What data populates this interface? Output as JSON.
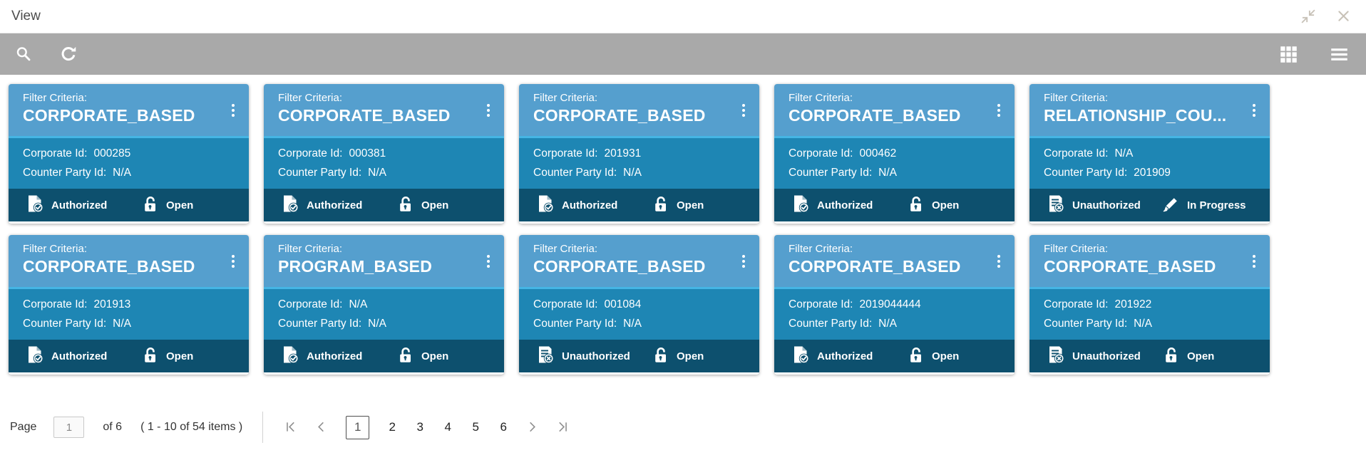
{
  "window": {
    "title": "View"
  },
  "titlebar": {
    "icons": [
      "exit-fullscreen-icon",
      "close-icon"
    ]
  },
  "toolbar": {
    "left_icons": [
      "search-icon",
      "refresh-icon"
    ],
    "right_icons": [
      "grid-view-icon",
      "list-view-icon"
    ]
  },
  "labels": {
    "filter_criteria": "Filter Criteria:",
    "corporate_id": "Corporate Id:",
    "counter_party_id": "Counter Party Id:"
  },
  "cards": [
    {
      "title": "CORPORATE_BASED",
      "corporate_id": "000285",
      "counter_party_id": "N/A",
      "auth_status": "Authorized",
      "auth_icon": "doc-check-icon",
      "record_status": "Open",
      "record_icon": "lock-open-icon"
    },
    {
      "title": "CORPORATE_BASED",
      "corporate_id": "000381",
      "counter_party_id": "N/A",
      "auth_status": "Authorized",
      "auth_icon": "doc-check-icon",
      "record_status": "Open",
      "record_icon": "lock-open-icon"
    },
    {
      "title": "CORPORATE_BASED",
      "corporate_id": "201931",
      "counter_party_id": "N/A",
      "auth_status": "Authorized",
      "auth_icon": "doc-check-icon",
      "record_status": "Open",
      "record_icon": "lock-open-icon"
    },
    {
      "title": "CORPORATE_BASED",
      "corporate_id": "000462",
      "counter_party_id": "N/A",
      "auth_status": "Authorized",
      "auth_icon": "doc-check-icon",
      "record_status": "Open",
      "record_icon": "lock-open-icon"
    },
    {
      "title": "RELATIONSHIP_COU...",
      "corporate_id": "N/A",
      "counter_party_id": "201909",
      "auth_status": "Unauthorized",
      "auth_icon": "doc-x-icon",
      "record_status": "In Progress",
      "record_icon": "pen-icon"
    },
    {
      "title": "CORPORATE_BASED",
      "corporate_id": "201913",
      "counter_party_id": "N/A",
      "auth_status": "Authorized",
      "auth_icon": "doc-check-icon",
      "record_status": "Open",
      "record_icon": "lock-open-icon"
    },
    {
      "title": "PROGRAM_BASED",
      "corporate_id": "N/A",
      "counter_party_id": "N/A",
      "auth_status": "Authorized",
      "auth_icon": "doc-check-icon",
      "record_status": "Open",
      "record_icon": "lock-open-icon"
    },
    {
      "title": "CORPORATE_BASED",
      "corporate_id": "001084",
      "counter_party_id": "N/A",
      "auth_status": "Unauthorized",
      "auth_icon": "doc-x-icon",
      "record_status": "Open",
      "record_icon": "lock-open-icon"
    },
    {
      "title": "CORPORATE_BASED",
      "corporate_id": "2019044444",
      "counter_party_id": "N/A",
      "auth_status": "Authorized",
      "auth_icon": "doc-check-icon",
      "record_status": "Open",
      "record_icon": "lock-open-icon"
    },
    {
      "title": "CORPORATE_BASED",
      "corporate_id": "201922",
      "counter_party_id": "N/A",
      "auth_status": "Unauthorized",
      "auth_icon": "doc-x-icon",
      "record_status": "Open",
      "record_icon": "lock-open-icon"
    }
  ],
  "pagination": {
    "page_label": "Page",
    "page_value": "1",
    "of_label": "of 6",
    "items_label": "( 1 - 10 of 54 items )",
    "pages": [
      "1",
      "2",
      "3",
      "4",
      "5",
      "6"
    ],
    "current_page": "1"
  },
  "colors": {
    "card_header": "#559fce",
    "card_body": "#1e86b4",
    "card_footer": "#0d506e",
    "header_separator": "#45b5e4",
    "toolbar_bg": "#a9a9a9",
    "titlebar_icon": "#c8c2b8"
  }
}
